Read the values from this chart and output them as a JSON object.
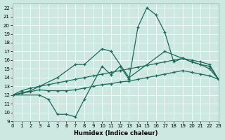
{
  "xlabel": "Humidex (Indice chaleur)",
  "bg_color": "#cce8e0",
  "line_color": "#1a6b5a",
  "grid_color": "#ffffff",
  "xlim": [
    0,
    23
  ],
  "ylim": [
    9,
    22.5
  ],
  "xticks": [
    0,
    1,
    2,
    3,
    4,
    5,
    6,
    7,
    8,
    9,
    10,
    11,
    12,
    13,
    14,
    15,
    16,
    17,
    18,
    19,
    20,
    21,
    22,
    23
  ],
  "yticks": [
    9,
    10,
    11,
    12,
    13,
    14,
    15,
    16,
    17,
    18,
    19,
    20,
    21,
    22
  ],
  "line_peak_x": [
    0,
    3,
    4,
    5,
    6,
    7,
    8,
    10,
    11,
    12,
    13,
    14,
    15,
    16,
    17,
    18,
    19,
    20,
    21,
    22,
    23
  ],
  "line_peak_y": [
    12,
    12,
    11.5,
    9.8,
    9.8,
    9.5,
    11.5,
    15.3,
    14.3,
    15.3,
    13.8,
    19.8,
    22.0,
    21.2,
    19.2,
    15.8,
    16.2,
    15.8,
    15.5,
    15.0,
    13.8
  ],
  "line_upper_x": [
    0,
    2,
    3,
    5,
    7,
    8,
    10,
    11,
    13,
    17,
    19,
    20,
    21,
    22,
    23
  ],
  "line_upper_y": [
    12,
    12.5,
    13.0,
    14.0,
    15.5,
    15.5,
    17.3,
    17.0,
    14.0,
    17.0,
    16.2,
    15.8,
    15.5,
    15.3,
    13.8
  ],
  "line_mid_x": [
    0,
    1,
    2,
    3,
    4,
    5,
    6,
    7,
    8,
    9,
    10,
    11,
    12,
    13,
    14,
    15,
    16,
    17,
    18,
    19,
    20,
    21,
    22,
    23
  ],
  "line_mid_y": [
    12.0,
    12.5,
    12.8,
    13.0,
    13.2,
    13.4,
    13.6,
    13.8,
    14.0,
    14.2,
    14.4,
    14.6,
    14.8,
    15.0,
    15.2,
    15.4,
    15.6,
    15.8,
    16.0,
    16.2,
    16.0,
    15.8,
    15.5,
    13.8
  ],
  "line_low_x": [
    0,
    1,
    2,
    3,
    4,
    5,
    6,
    7,
    8,
    9,
    10,
    11,
    12,
    13,
    14,
    15,
    16,
    17,
    18,
    19,
    20,
    21,
    22,
    23
  ],
  "line_low_y": [
    12.0,
    12.2,
    12.4,
    12.6,
    12.5,
    12.5,
    12.5,
    12.6,
    12.8,
    13.0,
    13.2,
    13.3,
    13.5,
    13.6,
    13.8,
    14.0,
    14.2,
    14.4,
    14.6,
    14.8,
    14.6,
    14.4,
    14.2,
    13.8
  ]
}
